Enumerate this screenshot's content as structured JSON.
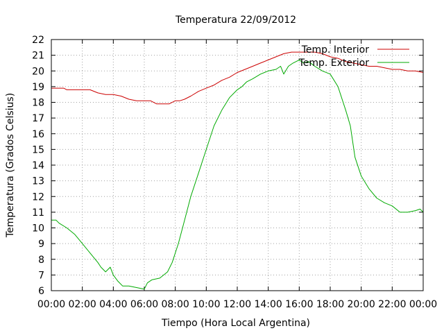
{
  "chart_data": {
    "type": "line",
    "title": "Temperatura 22/09/2012",
    "xlabel": "Tiempo (Hora Local Argentina)",
    "ylabel": "Temperatura (Grados Celsius)",
    "x_tick_labels": [
      "00:00",
      "02:00",
      "04:00",
      "06:00",
      "08:00",
      "10:00",
      "12:00",
      "14:00",
      "16:00",
      "18:00",
      "20:00",
      "22:00",
      "00:00"
    ],
    "y_tick_labels": [
      "6",
      "7",
      "8",
      "9",
      "10",
      "11",
      "12",
      "13",
      "14",
      "15",
      "16",
      "17",
      "18",
      "19",
      "20",
      "21",
      "22"
    ],
    "xlim_hours": [
      0,
      24
    ],
    "ylim": [
      6,
      22
    ],
    "grid": true,
    "legend_position": "top-right",
    "series": [
      {
        "name": "Temp. Interior",
        "color": "#cc0000",
        "x": [
          0,
          0.8,
          1.0,
          2.0,
          2.5,
          3.0,
          3.5,
          4.0,
          4.5,
          5.0,
          5.5,
          6.0,
          6.4,
          6.8,
          7.2,
          7.6,
          8.0,
          8.3,
          8.6,
          9.0,
          9.5,
          10.0,
          10.5,
          11.0,
          11.5,
          12.0,
          12.5,
          13.0,
          13.5,
          14.0,
          14.5,
          15.0,
          15.5,
          16.0,
          16.5,
          17.0,
          17.5,
          18.0,
          18.5,
          19.0,
          19.5,
          20.0,
          20.5,
          21.0,
          21.5,
          22.0,
          22.5,
          23.0,
          23.5,
          24.0
        ],
        "y": [
          18.9,
          18.9,
          18.8,
          18.8,
          18.8,
          18.6,
          18.5,
          18.5,
          18.4,
          18.2,
          18.1,
          18.1,
          18.1,
          17.9,
          17.9,
          17.9,
          18.1,
          18.1,
          18.2,
          18.4,
          18.7,
          18.9,
          19.1,
          19.4,
          19.6,
          19.9,
          20.1,
          20.3,
          20.5,
          20.7,
          20.9,
          21.1,
          21.2,
          21.2,
          21.2,
          21.2,
          21.1,
          20.9,
          20.8,
          20.6,
          20.5,
          20.4,
          20.3,
          20.3,
          20.2,
          20.1,
          20.1,
          20.0,
          20.0,
          19.9
        ]
      },
      {
        "name": "Temp. Exterior",
        "color": "#00aa00",
        "x": [
          0,
          0.3,
          0.5,
          1.0,
          1.5,
          2.0,
          2.5,
          3.0,
          3.2,
          3.5,
          3.8,
          4.0,
          4.3,
          4.6,
          5.0,
          5.5,
          6.0,
          6.2,
          6.5,
          7.0,
          7.5,
          7.8,
          8.2,
          8.6,
          9.0,
          9.5,
          10.0,
          10.5,
          11.0,
          11.5,
          12.0,
          12.3,
          12.6,
          13.0,
          13.5,
          14.0,
          14.5,
          14.8,
          15.0,
          15.3,
          15.6,
          16.0,
          16.3,
          16.6,
          17.0,
          17.5,
          18.0,
          18.5,
          19.0,
          19.3,
          19.6,
          20.0,
          20.5,
          21.0,
          21.5,
          22.0,
          22.5,
          23.0,
          23.5,
          23.8,
          24.0
        ],
        "y": [
          10.5,
          10.5,
          10.3,
          10.0,
          9.6,
          9.0,
          8.4,
          7.8,
          7.5,
          7.2,
          7.5,
          7.0,
          6.6,
          6.3,
          6.3,
          6.2,
          6.1,
          6.5,
          6.7,
          6.8,
          7.2,
          7.8,
          9.0,
          10.5,
          12.0,
          13.5,
          15.0,
          16.5,
          17.5,
          18.3,
          18.8,
          19.0,
          19.3,
          19.5,
          19.8,
          20.0,
          20.1,
          20.3,
          19.8,
          20.3,
          20.5,
          20.7,
          20.5,
          20.6,
          20.3,
          20.0,
          19.8,
          19.0,
          17.5,
          16.5,
          14.5,
          13.3,
          12.5,
          11.9,
          11.6,
          11.4,
          11.0,
          11.0,
          11.1,
          11.2,
          11.0
        ]
      }
    ]
  }
}
